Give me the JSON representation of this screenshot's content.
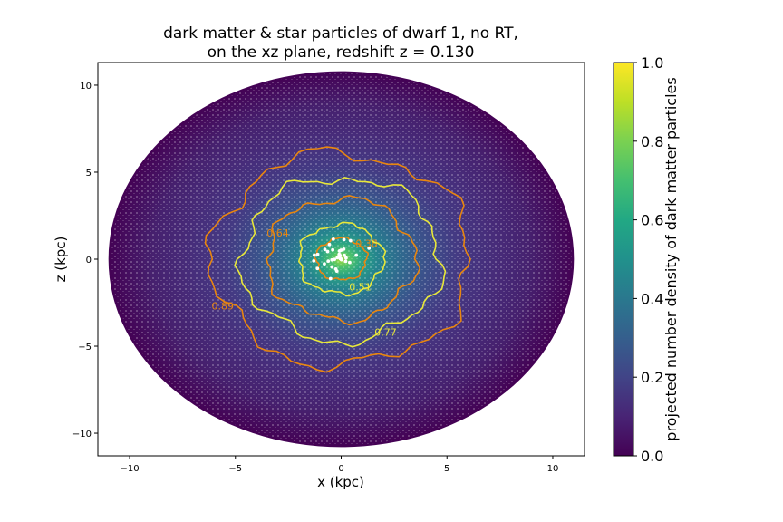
{
  "chart_data": {
    "type": "heatmap",
    "title_line1": "dark matter & star particles of dwarf 1, no RT,",
    "title_line2": "on the xz plane, redshift z = 0.130",
    "xlabel": "x (kpc)",
    "ylabel": "z (kpc)",
    "xlim": [
      -11.5,
      11.5
    ],
    "ylim": [
      -11.3,
      11.3
    ],
    "xticks": [
      -10,
      -5,
      0,
      5,
      10
    ],
    "yticks": [
      -10,
      -5,
      0,
      5,
      10
    ],
    "colorbar": {
      "label": "projected number density of dark matter particles",
      "range": [
        0.0,
        1.0
      ],
      "ticks": [
        "0.0",
        "0.2",
        "0.4",
        "0.6",
        "0.8",
        "1.0"
      ],
      "colormap": "viridis"
    },
    "halo_extent_kpc": {
      "rx": 11.0,
      "ry": 10.8
    },
    "contours": [
      {
        "label": "0.38",
        "color": "#e8860f",
        "radius_kpc": 1.2,
        "label_at": [
          1.2,
          0.7
        ]
      },
      {
        "label": "0.51",
        "color": "#e8e83a",
        "radius_kpc": 2.0,
        "label_at": [
          0.9,
          -1.8
        ]
      },
      {
        "label": "0.64",
        "color": "#e8860f",
        "radius_kpc": 3.5,
        "label_at": [
          -3.0,
          1.3
        ]
      },
      {
        "label": "0.77",
        "color": "#e8e83a",
        "radius_kpc": 4.7,
        "label_at": [
          2.1,
          -4.4
        ]
      },
      {
        "label": "0.89",
        "color": "#e8860f",
        "radius_kpc": 6.1,
        "label_at": [
          -5.6,
          -2.9
        ]
      }
    ],
    "star_particles": {
      "color": "#ffffff",
      "center": [
        0,
        0
      ],
      "spread_kpc": 1.5
    }
  }
}
